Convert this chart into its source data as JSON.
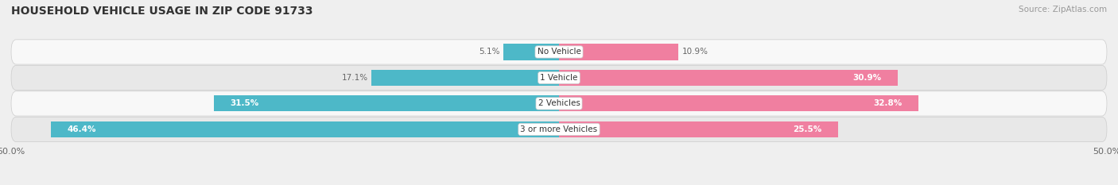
{
  "title": "HOUSEHOLD VEHICLE USAGE IN ZIP CODE 91733",
  "source": "Source: ZipAtlas.com",
  "categories": [
    "No Vehicle",
    "1 Vehicle",
    "2 Vehicles",
    "3 or more Vehicles"
  ],
  "owner_values": [
    5.1,
    17.1,
    31.5,
    46.4
  ],
  "renter_values": [
    10.9,
    30.9,
    32.8,
    25.5
  ],
  "owner_color": "#4db8c8",
  "renter_color": "#f07fa0",
  "bg_color": "#efefef",
  "row_bg_light": "#f8f8f8",
  "row_bg_dark": "#e8e8e8",
  "axis_limit": 50.0,
  "title_fontsize": 10,
  "source_fontsize": 7.5,
  "label_fontsize": 7.5,
  "value_fontsize": 7.5,
  "tick_fontsize": 8,
  "bar_height": 0.62
}
